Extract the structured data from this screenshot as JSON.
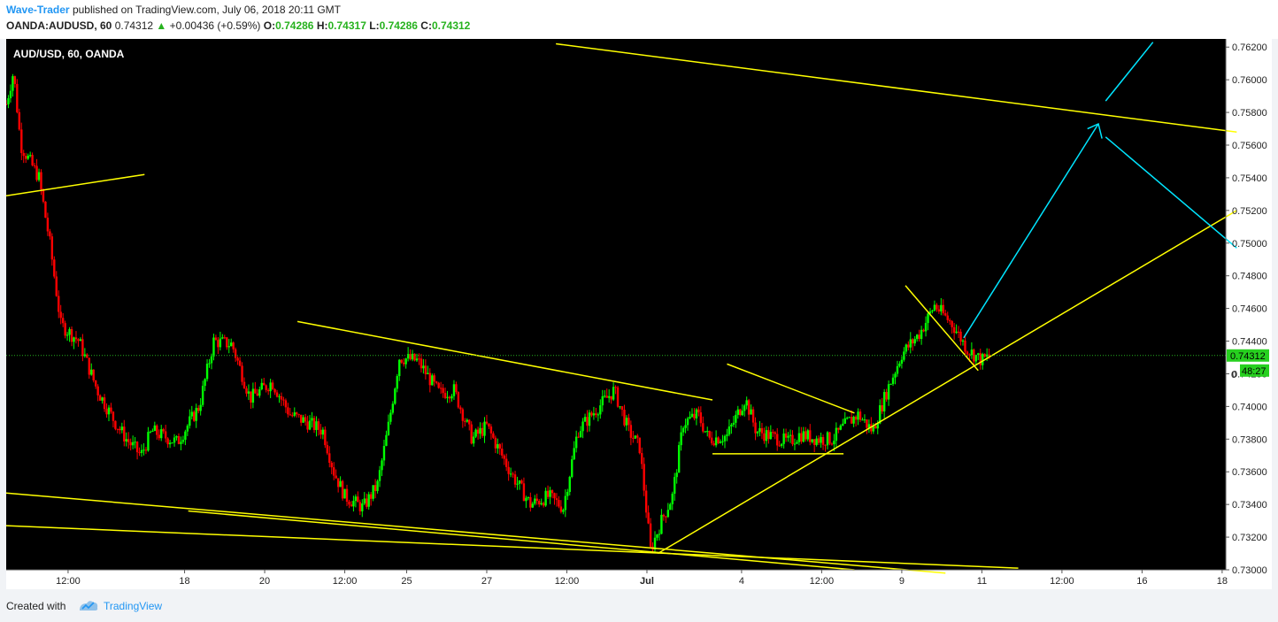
{
  "header": {
    "author": "Wave-Trader",
    "published_text": "published on TradingView.com, July 06, 2018 20:11 GMT",
    "symbol": "OANDA:AUDUSD, 60",
    "last": "0.74312",
    "change": "+0.00436 (+0.59%)",
    "o_label": "O:",
    "o_value": "0.74286",
    "h_label": "H:",
    "h_value": "0.74317",
    "l_label": "L:",
    "l_value": "0.74286",
    "c_label": "C:",
    "c_value": "0.74312"
  },
  "chart_data": {
    "type": "candlestick",
    "title": "AUD/USD, 60, OANDA",
    "ylim": [
      0.73,
      0.7625
    ],
    "y_ticks": [
      "0.73000",
      "0.73200",
      "0.73400",
      "0.73600",
      "0.73800",
      "0.74000",
      "0.74200",
      "0.74400",
      "0.74600",
      "0.74800",
      "0.75000",
      "0.75200",
      "0.75400",
      "0.75600",
      "0.75800",
      "0.76000",
      "0.76200"
    ],
    "x_ticks": [
      "12:00",
      "18",
      "20",
      "12:00",
      "25",
      "27",
      "12:00",
      "Jul",
      "4",
      "12:00",
      "9",
      "11",
      "12:00",
      "16",
      "18"
    ],
    "x_tick_units": [
      22,
      54,
      76,
      98,
      115,
      137,
      159,
      181,
      207,
      229,
      251,
      273,
      295,
      317,
      339
    ],
    "x_range": [
      5,
      340
    ],
    "last_price": {
      "value": 0.74312,
      "label": "0.74312",
      "countdown": "48:27",
      "partial_label": "0"
    },
    "colors": {
      "background": "#000000",
      "up": "#00ff00",
      "down": "#ff0000",
      "trendline": "#ffff00",
      "projection": "#00e5ff",
      "price_line": "#27b21f"
    },
    "anchors": [
      [
        5,
        0.7585
      ],
      [
        7,
        0.7605
      ],
      [
        9,
        0.756
      ],
      [
        14,
        0.754
      ],
      [
        17,
        0.75
      ],
      [
        20,
        0.745
      ],
      [
        25,
        0.744
      ],
      [
        30,
        0.741
      ],
      [
        35,
        0.739
      ],
      [
        38,
        0.738
      ],
      [
        42,
        0.737
      ],
      [
        45,
        0.7385
      ],
      [
        48,
        0.7382
      ],
      [
        52,
        0.7378
      ],
      [
        58,
        0.74
      ],
      [
        62,
        0.744
      ],
      [
        67,
        0.7438
      ],
      [
        72,
        0.7405
      ],
      [
        78,
        0.7415
      ],
      [
        83,
        0.7395
      ],
      [
        88,
        0.739
      ],
      [
        92,
        0.7385
      ],
      [
        95,
        0.736
      ],
      [
        98,
        0.7345
      ],
      [
        103,
        0.7338
      ],
      [
        107,
        0.7352
      ],
      [
        110,
        0.7388
      ],
      [
        113,
        0.743
      ],
      [
        118,
        0.7428
      ],
      [
        124,
        0.7408
      ],
      [
        128,
        0.741
      ],
      [
        133,
        0.738
      ],
      [
        137,
        0.7388
      ],
      [
        140,
        0.7375
      ],
      [
        144,
        0.7358
      ],
      [
        149,
        0.734
      ],
      [
        154,
        0.7345
      ],
      [
        158,
        0.7338
      ],
      [
        162,
        0.7385
      ],
      [
        167,
        0.7398
      ],
      [
        172,
        0.741
      ],
      [
        176,
        0.7385
      ],
      [
        179,
        0.7375
      ],
      [
        182,
        0.7312
      ],
      [
        185,
        0.733
      ],
      [
        188,
        0.7345
      ],
      [
        191,
        0.739
      ],
      [
        195,
        0.7395
      ],
      [
        198,
        0.738
      ],
      [
        203,
        0.7382
      ],
      [
        208,
        0.7405
      ],
      [
        211,
        0.7385
      ],
      [
        220,
        0.7378
      ],
      [
        223,
        0.7383
      ],
      [
        228,
        0.738
      ],
      [
        232,
        0.738
      ],
      [
        236,
        0.739
      ],
      [
        239,
        0.7395
      ],
      [
        243,
        0.7385
      ],
      [
        247,
        0.741
      ],
      [
        251,
        0.7432
      ],
      [
        256,
        0.7445
      ],
      [
        260,
        0.7462
      ],
      [
        265,
        0.745
      ],
      [
        269,
        0.7435
      ],
      [
        273,
        0.7428
      ],
      [
        275,
        0.7431
      ]
    ],
    "trendlines": [
      {
        "color": "#ffff00",
        "points": [
          [
            5,
            0.7529
          ],
          [
            43,
            0.7542
          ]
        ]
      },
      {
        "color": "#ffff00",
        "points": [
          [
            156,
            0.7622
          ],
          [
            343,
            0.7568
          ]
        ]
      },
      {
        "color": "#ffff00",
        "points": [
          [
            85,
            0.7452
          ],
          [
            199,
            0.7404
          ]
        ]
      },
      {
        "color": "#ffff00",
        "points": [
          [
            203,
            0.7426
          ],
          [
            238,
            0.7396
          ]
        ]
      },
      {
        "color": "#ffff00",
        "points": [
          [
            199,
            0.7371
          ],
          [
            235,
            0.7371
          ]
        ]
      },
      {
        "color": "#ffff00",
        "points": [
          [
            184,
            0.731
          ],
          [
            343,
            0.752
          ]
        ]
      },
      {
        "color": "#ffff00",
        "points": [
          [
            252,
            0.7474
          ],
          [
            272,
            0.7422
          ]
        ]
      },
      {
        "color": "#ffff00",
        "points": [
          [
            5,
            0.7347
          ],
          [
            263,
            0.7298
          ]
        ]
      },
      {
        "color": "#ffff00",
        "points": [
          [
            5,
            0.7327
          ],
          [
            283,
            0.7301
          ]
        ]
      },
      {
        "color": "#ffff00",
        "points": [
          [
            55,
            0.7336
          ],
          [
            238,
            0.73
          ]
        ]
      }
    ],
    "projection": [
      {
        "color": "#00e5ff",
        "points": [
          [
            268,
            0.7442
          ],
          [
            305,
            0.7573
          ]
        ]
      },
      {
        "color": "#00e5ff",
        "points": [
          [
            307,
            0.7565
          ],
          [
            343,
            0.7497
          ]
        ]
      },
      {
        "color": "#00e5ff",
        "points": [
          [
            307,
            0.7587
          ],
          [
            320,
            0.7623
          ]
        ]
      }
    ],
    "projection_arrowhead": [
      [
        302,
        0.757
      ],
      [
        305,
        0.7573
      ],
      [
        306,
        0.7564
      ]
    ]
  },
  "footer": {
    "created_text": "Created with",
    "brand": "TradingView"
  }
}
